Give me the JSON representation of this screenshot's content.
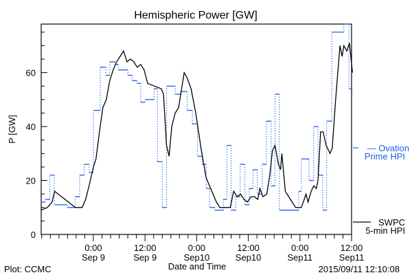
{
  "chart_data": {
    "type": "line",
    "title": "Hemispheric Power [GW]",
    "xlabel": "Date and Time",
    "ylabel": "P [GW]",
    "x_units": "hours since 2015-09-09 00:00",
    "xlim": [
      -12.2,
      60.2
    ],
    "ylim": [
      0,
      78
    ],
    "y_ticks": [
      0,
      20,
      40,
      60
    ],
    "y_tick_labels": [
      "0",
      "20",
      "40",
      "60"
    ],
    "y_minor_step": 5,
    "x_ticks": [
      {
        "h": 0,
        "time": "0:00",
        "date": "Sep 9"
      },
      {
        "h": 12,
        "time": "12:00",
        "date": "Sep 9"
      },
      {
        "h": 24,
        "time": "0:00",
        "date": "Sep10"
      },
      {
        "h": 36,
        "time": "12:00",
        "date": "Sep10"
      },
      {
        "h": 48,
        "time": "0:00",
        "date": "Sep11"
      },
      {
        "h": 60,
        "time": "12:00",
        "date": "Sep11"
      }
    ],
    "x_minor_step": 2,
    "series": [
      {
        "name": "SWPC 5-min HPI",
        "legend": [
          "SWPC",
          "5-min HPI"
        ],
        "color": "#000000",
        "style": "solid",
        "points": [
          [
            -12.2,
            9
          ],
          [
            -10.7,
            10
          ],
          [
            -9.6,
            12
          ],
          [
            -9.0,
            16
          ],
          [
            -4.2,
            10
          ],
          [
            -2.6,
            10
          ],
          [
            -1.8,
            13
          ],
          [
            -1.0,
            18
          ],
          [
            0,
            25
          ],
          [
            0.6,
            28
          ],
          [
            1.4,
            38
          ],
          [
            2.2,
            47
          ],
          [
            3.0,
            50
          ],
          [
            3.8,
            57
          ],
          [
            4.6,
            61
          ],
          [
            5.4,
            64
          ],
          [
            6.2,
            66
          ],
          [
            7.0,
            68
          ],
          [
            7.8,
            64
          ],
          [
            8.6,
            65
          ],
          [
            9.4,
            64
          ],
          [
            10.2,
            62
          ],
          [
            11.0,
            63
          ],
          [
            11.8,
            61
          ],
          [
            12.6,
            56
          ],
          [
            14.2,
            55
          ],
          [
            15.8,
            54
          ],
          [
            16.3,
            52
          ],
          [
            17.0,
            33
          ],
          [
            17.6,
            29
          ],
          [
            18.2,
            40
          ],
          [
            19.0,
            45
          ],
          [
            19.8,
            47
          ],
          [
            20.6,
            55
          ],
          [
            21.1,
            60
          ],
          [
            21.8,
            58
          ],
          [
            22.7,
            54
          ],
          [
            23.8,
            45
          ],
          [
            25.0,
            32
          ],
          [
            26.2,
            21
          ],
          [
            27.0,
            18
          ],
          [
            27.8,
            15
          ],
          [
            28.6,
            12
          ],
          [
            29.4,
            10
          ],
          [
            30.2,
            10
          ],
          [
            31.8,
            10
          ],
          [
            32.6,
            16
          ],
          [
            33.4,
            14
          ],
          [
            34.2,
            15
          ],
          [
            35.0,
            13
          ],
          [
            35.8,
            12
          ],
          [
            36.6,
            14
          ],
          [
            37.4,
            14
          ],
          [
            38.2,
            13
          ],
          [
            38.7,
            17
          ],
          [
            39.4,
            14
          ],
          [
            40.3,
            15
          ],
          [
            41.0,
            22
          ],
          [
            41.6,
            31
          ],
          [
            42.2,
            33
          ],
          [
            43.0,
            26
          ],
          [
            43.5,
            24
          ],
          [
            43.8,
            30
          ],
          [
            44.6,
            16
          ],
          [
            45.4,
            14
          ],
          [
            47.0,
            10
          ],
          [
            48.3,
            10
          ],
          [
            49.0,
            13
          ],
          [
            49.4,
            15
          ],
          [
            49.9,
            12
          ],
          [
            50.6,
            16
          ],
          [
            51.2,
            18
          ],
          [
            51.8,
            17
          ],
          [
            52.2,
            20
          ],
          [
            52.8,
            38
          ],
          [
            53.4,
            38
          ],
          [
            54.1,
            33
          ],
          [
            55.0,
            30
          ],
          [
            55.5,
            32
          ],
          [
            56.3,
            50
          ],
          [
            57.3,
            70
          ],
          [
            57.8,
            66
          ],
          [
            58.2,
            70
          ],
          [
            58.9,
            68
          ],
          [
            59.5,
            71
          ],
          [
            60.2,
            60
          ]
        ]
      },
      {
        "name": "Ovation Prime HPI",
        "legend": [
          "Ovation",
          "Prime HPI"
        ],
        "color": "#1a5ee8",
        "style": "step (solid horizontals, dotted risers)",
        "steps": [
          [
            -12.2,
            12
          ],
          [
            -11.2,
            13
          ],
          [
            -10.1,
            22
          ],
          [
            -9.1,
            11
          ],
          [
            -6.1,
            10
          ],
          [
            -4.2,
            14
          ],
          [
            -3.2,
            22
          ],
          [
            -2.1,
            26
          ],
          [
            -1.0,
            23
          ],
          [
            0,
            46
          ],
          [
            1.6,
            62
          ],
          [
            2.9,
            59
          ],
          [
            3.8,
            64
          ],
          [
            5.0,
            63
          ],
          [
            5.8,
            61
          ],
          [
            8.0,
            59
          ],
          [
            9.0,
            57
          ],
          [
            10.1,
            56
          ],
          [
            11.0,
            49
          ],
          [
            12.0,
            50
          ],
          [
            14.1,
            54
          ],
          [
            14.9,
            27
          ],
          [
            16.0,
            10
          ],
          [
            17.0,
            55
          ],
          [
            19.0,
            52
          ],
          [
            20.3,
            53
          ],
          [
            21.8,
            46
          ],
          [
            23.0,
            41
          ],
          [
            24.2,
            29
          ],
          [
            25.3,
            26
          ],
          [
            26.2,
            17
          ],
          [
            27.0,
            10
          ],
          [
            28.2,
            9
          ],
          [
            30.2,
            13
          ],
          [
            31.0,
            33
          ],
          [
            32.0,
            9
          ],
          [
            33.1,
            14
          ],
          [
            34.1,
            26
          ],
          [
            35.2,
            11
          ],
          [
            36.2,
            17
          ],
          [
            37.1,
            24
          ],
          [
            38.1,
            15
          ],
          [
            39.2,
            26
          ],
          [
            40.2,
            42
          ],
          [
            41.3,
            18
          ],
          [
            42.2,
            52
          ],
          [
            43.2,
            9
          ],
          [
            47.7,
            16
          ],
          [
            48.3,
            28
          ],
          [
            50.1,
            20
          ],
          [
            51.2,
            40
          ],
          [
            52.2,
            22
          ],
          [
            53.3,
            9
          ],
          [
            54.2,
            42
          ],
          [
            55.4,
            75
          ],
          [
            58.2,
            78
          ],
          [
            59.4,
            54
          ]
        ],
        "end": 60.2
      }
    ],
    "footer_left": "Plot: CCMC",
    "footer_right": "2015/09/11 12:10:08"
  }
}
